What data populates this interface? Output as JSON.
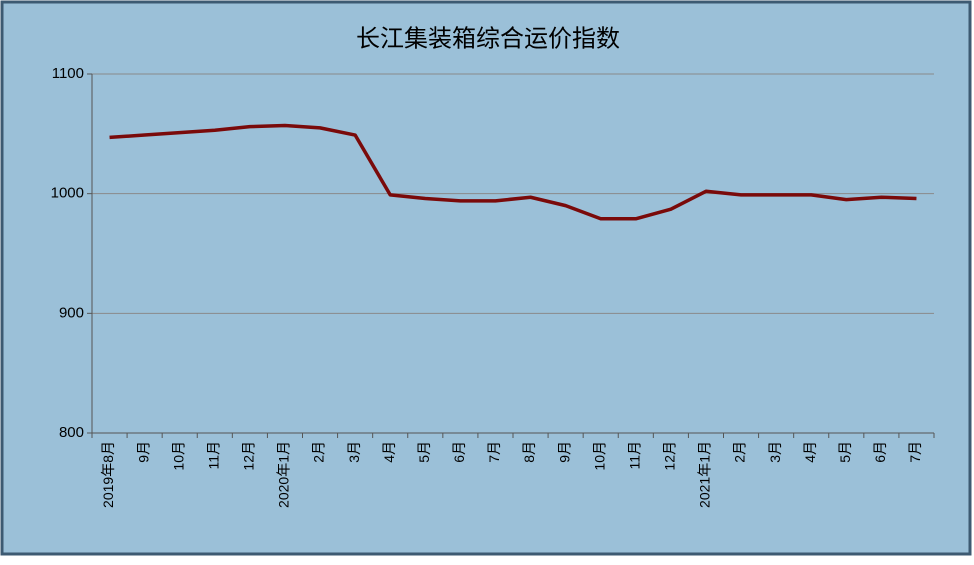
{
  "chart_data": {
    "type": "line",
    "title": "长江集装箱综合运价指数",
    "categories": [
      "2019年8月",
      "9月",
      "10月",
      "11月",
      "12月",
      "2020年1月",
      "2月",
      "3月",
      "4月",
      "5月",
      "6月",
      "7月",
      "8月",
      "9月",
      "10月",
      "11月",
      "12月",
      "2021年1月",
      "2月",
      "3月",
      "4月",
      "5月",
      "6月",
      "7月"
    ],
    "values": [
      1047,
      1049,
      1051,
      1053,
      1056,
      1057,
      1055,
      1049,
      999,
      996,
      994,
      994,
      997,
      990,
      979,
      979,
      987,
      1002,
      999,
      999,
      999,
      995,
      997,
      996
    ],
    "color": "#7a0a0a",
    "ylim": [
      800,
      1100
    ],
    "yticks": [
      800,
      900,
      1000,
      1100
    ],
    "grid": true
  }
}
